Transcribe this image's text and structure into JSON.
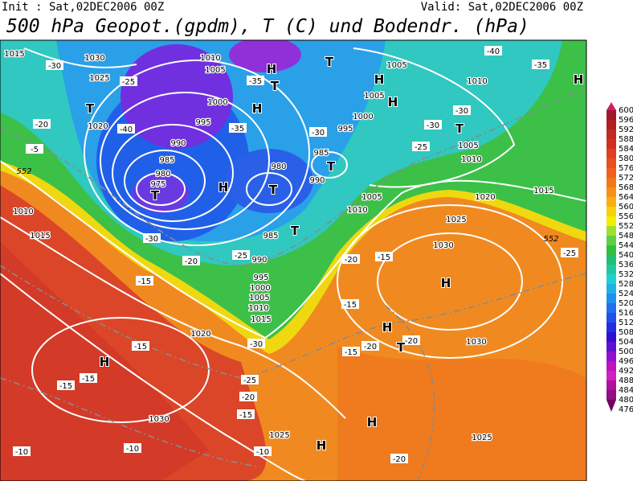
{
  "header": {
    "init": "Init : Sat,02DEC2006 00Z",
    "valid": "Valid: Sat,02DEC2006 00Z",
    "title": "500 hPa Geopot.(gpdm), T (C) und Bodendr. (hPa)"
  },
  "pressure_labels": [
    "1015",
    "1030",
    "1025",
    "1020",
    "1010",
    "1005",
    "1000",
    "995",
    "990",
    "985",
    "980",
    "975",
    "985",
    "980",
    "990",
    "995",
    "1000",
    "1005",
    "1005",
    "1010",
    "1005",
    "1010",
    "1020",
    "1015",
    "1025",
    "1030",
    "1005",
    "1010",
    "985",
    "990",
    "995",
    "1000",
    "1005",
    "1010",
    "1015",
    "1020",
    "1010",
    "1015",
    "1030",
    "1025",
    "1025",
    "1030"
  ],
  "temperature_labels": [
    "-30",
    "-25",
    "-20",
    "-40",
    "-35",
    "-35",
    "-30",
    "-30",
    "-30",
    "-40",
    "-35",
    "-25",
    "-20",
    "-25",
    "-15",
    "-30",
    "-15",
    "-15",
    "-15",
    "-10",
    "-10",
    "-25",
    "-20",
    "-15",
    "-10",
    "-20",
    "-20",
    "-15",
    "-20",
    "-15",
    "-15",
    "-20",
    "-25",
    "-5",
    "-30"
  ],
  "center_labels": [
    "T",
    "H",
    "H",
    "H",
    "T",
    "T",
    "T",
    "T",
    "H",
    "T",
    "T",
    "H",
    "T",
    "H",
    "H",
    "H",
    "T",
    "H",
    "H",
    "H"
  ],
  "isoline_labels": [
    "552",
    "552"
  ],
  "colorbar": {
    "labels": [
      600,
      596,
      592,
      588,
      584,
      580,
      576,
      572,
      568,
      564,
      560,
      556,
      552,
      548,
      544,
      540,
      536,
      532,
      528,
      524,
      520,
      516,
      512,
      508,
      504,
      500,
      496,
      492,
      488,
      484,
      480,
      476
    ],
    "colors": [
      "#d02060",
      "#a01830",
      "#b02020",
      "#c02a20",
      "#d03020",
      "#e04020",
      "#e85020",
      "#f06020",
      "#f07818",
      "#f89018",
      "#f8b010",
      "#f8d010",
      "#f0f000",
      "#a0e030",
      "#60d040",
      "#30c040",
      "#20c070",
      "#20c8a0",
      "#20d0d0",
      "#20b0e8",
      "#2090f0",
      "#2070f0",
      "#2050e8",
      "#2030e0",
      "#3010d0",
      "#6010d0",
      "#9010d0",
      "#c010c0",
      "#d020c0",
      "#b010a0",
      "#901080",
      "#700060"
    ]
  }
}
